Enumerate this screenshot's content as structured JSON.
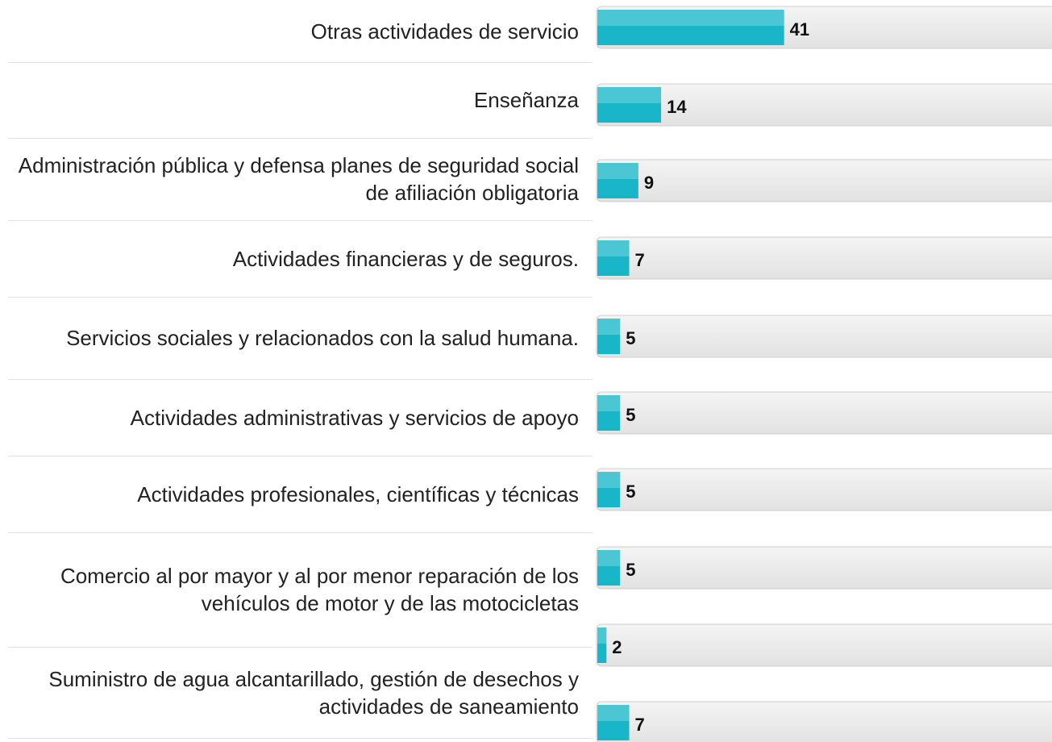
{
  "chart_data": {
    "type": "bar",
    "orientation": "horizontal",
    "categories": [
      "Otras actividades de servicio",
      "Enseñanza",
      "Administración pública y defensa planes de seguridad social de afiliación obligatoria",
      "Actividades financieras y de seguros.",
      "Servicios sociales y relacionados con la salud humana.",
      "Actividades administrativas y servicios de apoyo",
      "Actividades profesionales, científicas y técnicas",
      "Comercio al por mayor y al por menor reparación de los vehículos de motor y de las motocicletas",
      "Suministro de agua alcantarillado, gestión de desechos y actividades de saneamiento",
      null
    ],
    "values": [
      41,
      14,
      9,
      7,
      5,
      5,
      5,
      5,
      2,
      7
    ],
    "color": "#19b6c9",
    "xlim": [
      0,
      100
    ]
  }
}
